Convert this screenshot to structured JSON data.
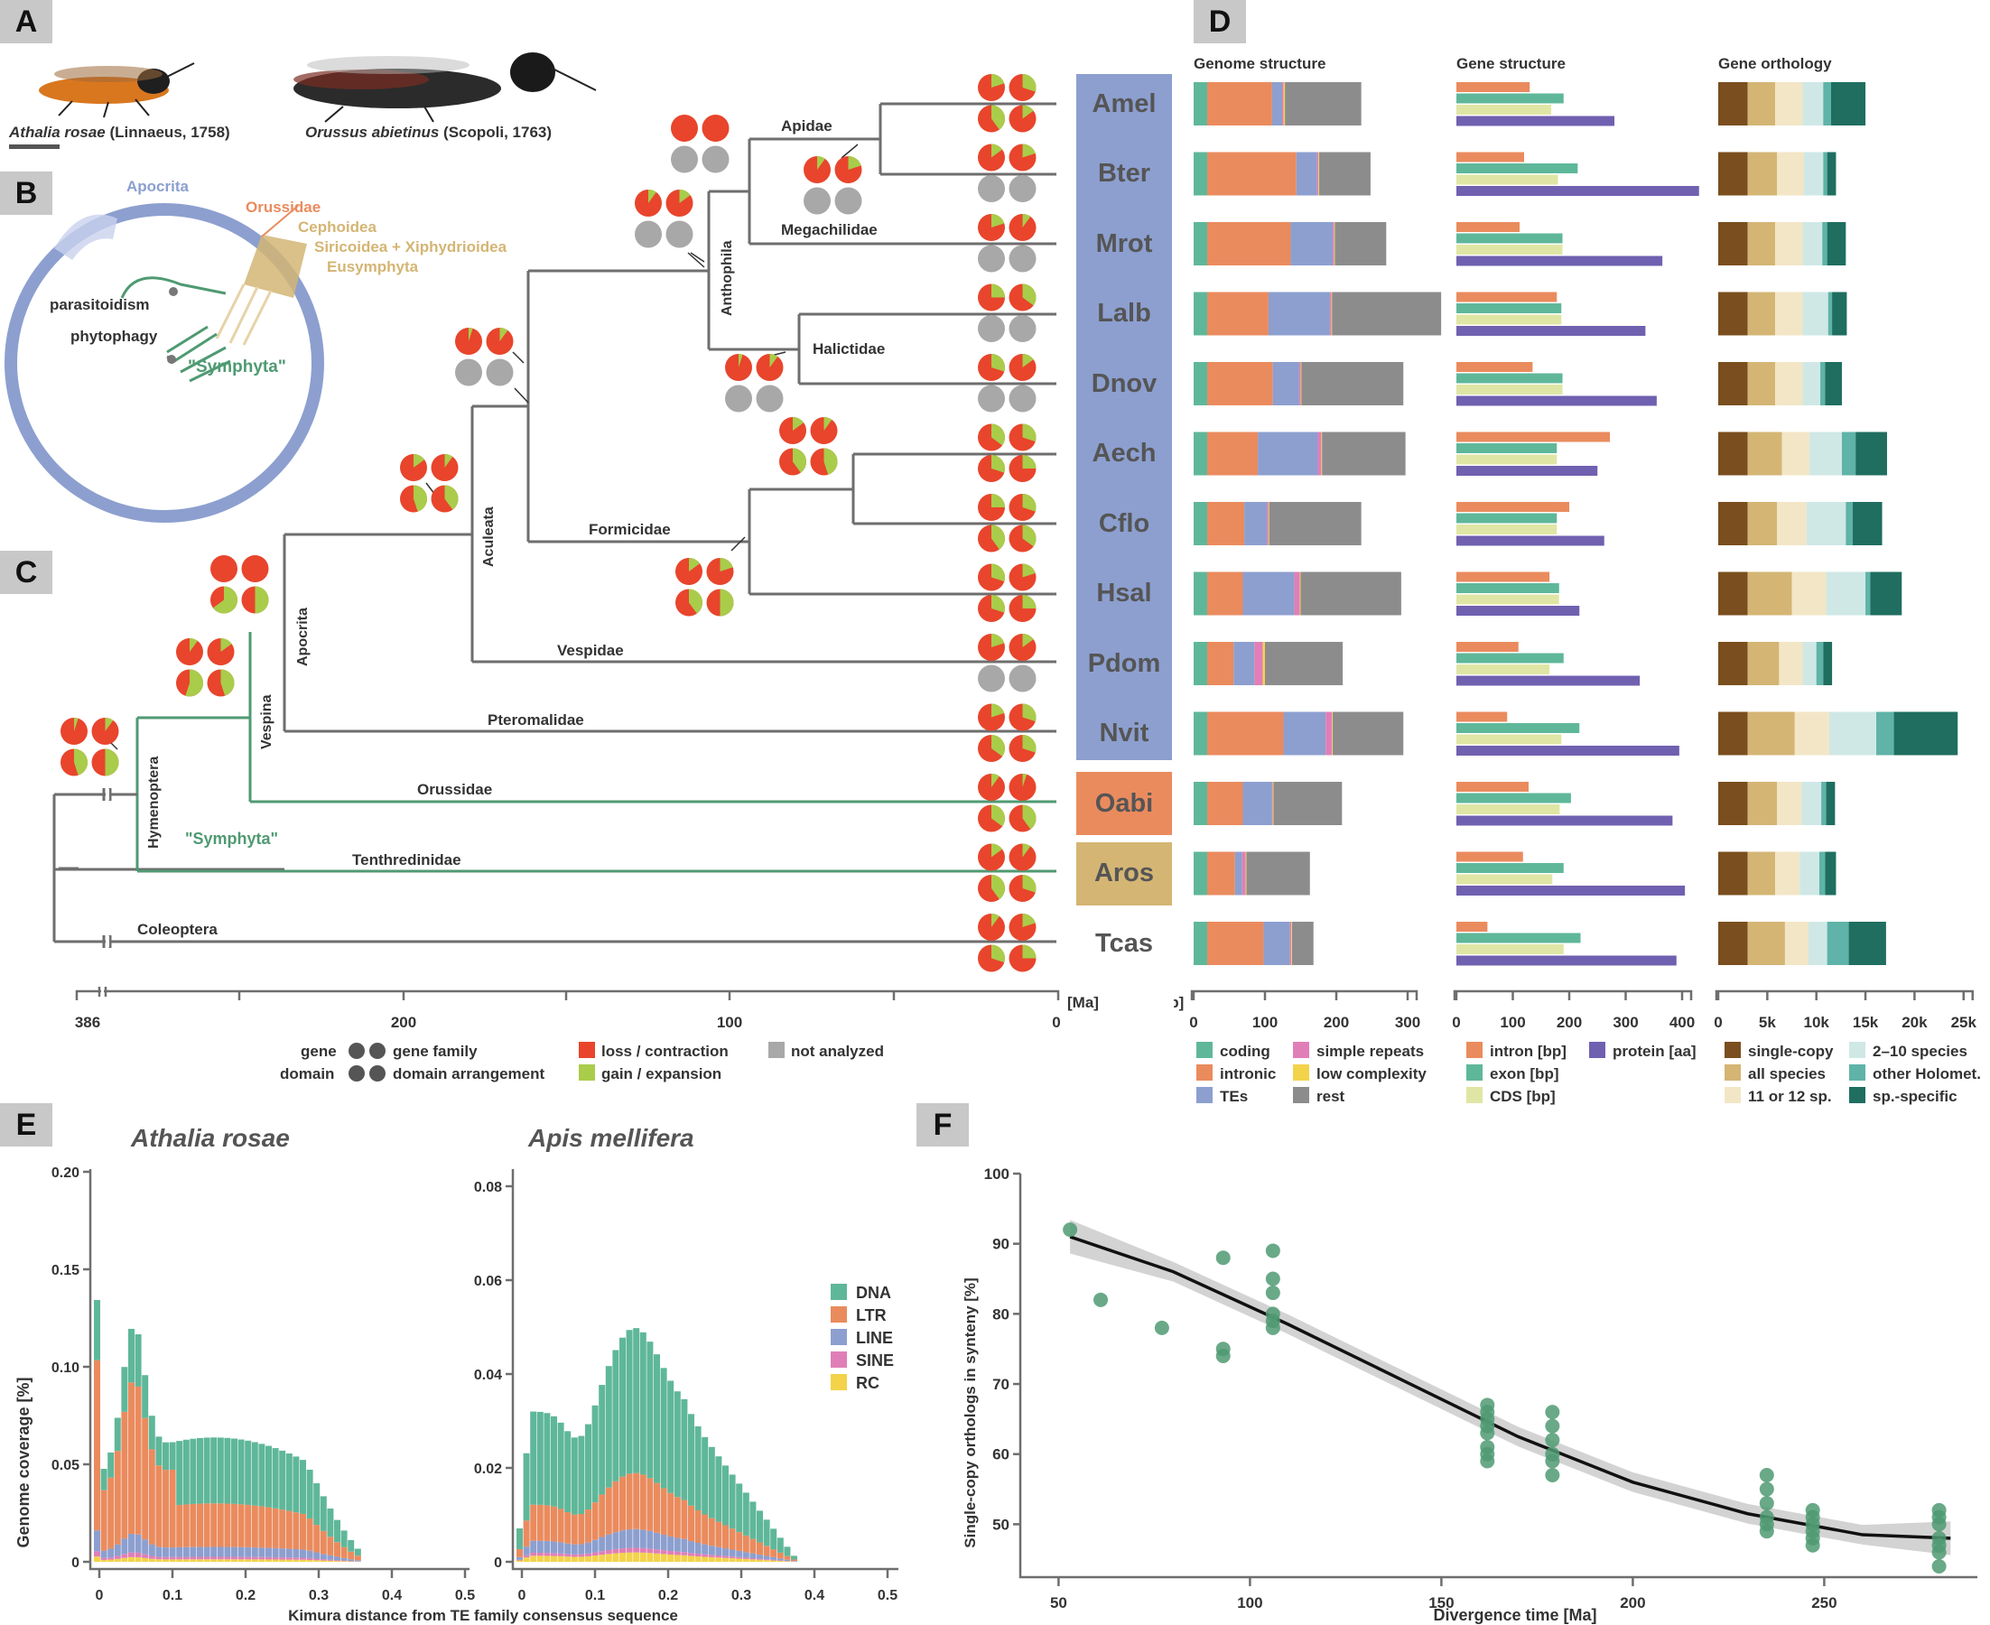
{
  "panel_labels": {
    "A": "A",
    "B": "B",
    "C": "C",
    "D": "D",
    "E": "E",
    "F": "F"
  },
  "panel_a": {
    "species": [
      {
        "name": "Athalia rosae",
        "author": " (Linnaeus, 1758)",
        "body_color": "#d9771f"
      },
      {
        "name": "Orussus abietinus",
        "author": " (Scopoli, 1763)",
        "body_color": "#2b2b2b"
      }
    ]
  },
  "panel_b": {
    "apocrita": "Apocrita",
    "orussidae": "Orussidae",
    "cephoidea": "Cephoidea",
    "siricoidea": "Siricoidea + Xiphydrioidea",
    "eusymphyta": "Eusymphyta",
    "parasitoidism": "parasitoidism",
    "phytophagy": "phytophagy",
    "symphyta": "\"Symphyta\""
  },
  "colors": {
    "apocrita": "#8c9fcf",
    "symphyta": "#4f9a72",
    "orange": "#ea8b5e",
    "tan": "#d4b574",
    "loss": "#e8452c",
    "gain": "#a9cc4a",
    "na": "#a8a8a8",
    "gray": "#6e6e6e"
  },
  "species": [
    {
      "code": "Amel",
      "group": "apo"
    },
    {
      "code": "Bter",
      "group": "apo"
    },
    {
      "code": "Mrot",
      "group": "apo"
    },
    {
      "code": "Lalb",
      "group": "apo"
    },
    {
      "code": "Dnov",
      "group": "apo"
    },
    {
      "code": "Aech",
      "group": "apo"
    },
    {
      "code": "Cflo",
      "group": "apo"
    },
    {
      "code": "Hsal",
      "group": "apo"
    },
    {
      "code": "Pdom",
      "group": "apo"
    },
    {
      "code": "Nvit",
      "group": "apo"
    },
    {
      "code": "Oabi",
      "group": "oru"
    },
    {
      "code": "Aros",
      "group": "ten"
    },
    {
      "code": "Tcas",
      "group": "out"
    }
  ],
  "tree": {
    "clades": {
      "apidae": "Apidae",
      "megachilidae": "Megachilidae",
      "halictidae": "Halictidae",
      "formicidae": "Formicidae",
      "vespidae": "Vespidae",
      "pteromalidae": "Pteromalidae",
      "orussidae": "Orussidae",
      "tenthredinidae": "Tenthredinidae",
      "coleoptera": "Coleoptera",
      "symphyta": "\"Symphyta\""
    },
    "nodes": {
      "anthophila": "Anthophila",
      "aculeata": "Aculeata",
      "apocrita": "Apocrita",
      "vespina": "Vespina",
      "hymenoptera": "Hymenoptera"
    },
    "axis": {
      "ticks": [
        "386",
        "200",
        "100",
        "0"
      ],
      "unit": "[Ma]"
    },
    "legend": {
      "gene": "gene",
      "gene_family": "gene family",
      "domain": "domain",
      "domain_arrangement": "domain arrangement",
      "loss": "loss / contraction",
      "gain": "gain / expansion",
      "na": "not analyzed"
    }
  },
  "panel_d": {
    "titles": {
      "genome": "Genome structure",
      "gene": "Gene structure",
      "orthology": "Gene orthology"
    },
    "units": {
      "genome": "[Mbp]"
    },
    "genome_ticks": [
      "0",
      "100",
      "200",
      "300"
    ],
    "gene_ticks": [
      "0",
      "100",
      "200",
      "300",
      "400"
    ],
    "orth_ticks": [
      "0",
      "5k",
      "10k",
      "15k",
      "20k",
      "25k"
    ],
    "genome_legend": [
      "coding",
      "intronic",
      "TEs",
      "simple repeats",
      "low complexity",
      "rest"
    ],
    "genome_colors": [
      "#5fb79a",
      "#ea8b5e",
      "#8c9fcf",
      "#e07fb7",
      "#f3d34a",
      "#8c8c8c"
    ],
    "gene_legend": [
      "intron [bp]",
      "exon [bp]",
      "CDS [bp]",
      "protein [aa]"
    ],
    "gene_colors": [
      "#ea8b5e",
      "#5fb79a",
      "#dfe6a5",
      "#7060b0"
    ],
    "orth_legend": [
      "single-copy",
      "all species",
      "11 or 12 sp.",
      "2–10 species",
      "other Holomet.",
      "sp.-specific"
    ],
    "orth_colors": [
      "#7a4e1e",
      "#d4b574",
      "#f3e6c6",
      "#cfe8e6",
      "#5fb3a8",
      "#1f6e60"
    ],
    "genome_values": [
      [
        19,
        91,
        14,
        2,
        2,
        107
      ],
      [
        19,
        125,
        29,
        2,
        1,
        72
      ],
      [
        19,
        117,
        59,
        2,
        1,
        72
      ],
      [
        19,
        86,
        86,
        2,
        1,
        153
      ],
      [
        19,
        92,
        37,
        2,
        1,
        143
      ],
      [
        19,
        71,
        84,
        5,
        1,
        117
      ],
      [
        19,
        52,
        32,
        2,
        1,
        129
      ],
      [
        19,
        50,
        72,
        8,
        1,
        141
      ],
      [
        19,
        37,
        29,
        12,
        3,
        109
      ],
      [
        19,
        107,
        59,
        9,
        1,
        99
      ],
      [
        19,
        50,
        41,
        1,
        1,
        96
      ],
      [
        19,
        39,
        10,
        5,
        1,
        89
      ],
      [
        19,
        79,
        37,
        2,
        1,
        30
      ]
    ],
    "gene_values": [
      [
        130,
        190,
        168,
        280
      ],
      [
        120,
        215,
        180,
        430
      ],
      [
        112,
        188,
        188,
        365
      ],
      [
        178,
        186,
        186,
        335
      ],
      [
        135,
        188,
        188,
        355
      ],
      [
        272,
        178,
        178,
        250
      ],
      [
        200,
        178,
        178,
        262
      ],
      [
        165,
        182,
        182,
        218
      ],
      [
        110,
        190,
        165,
        325
      ],
      [
        90,
        218,
        186,
        395
      ],
      [
        128,
        203,
        183,
        383
      ],
      [
        118,
        190,
        170,
        405
      ],
      [
        55,
        220,
        190,
        390
      ]
    ],
    "orth_values": [
      [
        3000,
        2800,
        2800,
        2100,
        800,
        3500
      ],
      [
        3000,
        3000,
        2700,
        2000,
        400,
        900
      ],
      [
        3000,
        2800,
        2800,
        2000,
        500,
        1900
      ],
      [
        3000,
        2800,
        2800,
        2600,
        400,
        1500
      ],
      [
        3000,
        2800,
        2800,
        1800,
        500,
        1700
      ],
      [
        3000,
        3500,
        2800,
        3300,
        1400,
        3200
      ],
      [
        3000,
        3000,
        3000,
        4000,
        700,
        3000
      ],
      [
        3000,
        4500,
        3500,
        4000,
        500,
        3200
      ],
      [
        3000,
        3200,
        2400,
        1400,
        700,
        900
      ],
      [
        3000,
        4800,
        3500,
        4800,
        1800,
        6500
      ],
      [
        3000,
        3000,
        2500,
        2000,
        500,
        900
      ],
      [
        3000,
        2800,
        2500,
        2000,
        600,
        1100
      ],
      [
        3000,
        3800,
        2400,
        1900,
        2200,
        3800
      ]
    ]
  },
  "panel_e": {
    "titles": [
      "Athalia rosae",
      "Apis mellifera"
    ],
    "ylabel": "Genome coverage [%]",
    "xlabel": "Kimura distance from TE family consensus sequence",
    "yticks_left": [
      "0",
      "0.05",
      "0.10",
      "0.15",
      "0.20"
    ],
    "yticks_right": [
      "0",
      "0.02",
      "0.04",
      "0.06",
      "0.08"
    ],
    "xticks": [
      "0",
      "0.1",
      "0.2",
      "0.3",
      "0.4",
      "0.5"
    ],
    "legend": [
      "DNA",
      "LTR",
      "LINE",
      "SINE",
      "RC"
    ],
    "legend_colors": [
      "#5fb79a",
      "#ea8b5e",
      "#8c9fcf",
      "#e07fb7",
      "#f3d34a"
    ]
  },
  "chart_data": {
    "type": "scatter",
    "xlabel": "Divergence time [Ma]",
    "ylabel": "Single-copy orthologs in synteny [%]",
    "xlim": [
      40,
      290
    ],
    "ylim": [
      44,
      100
    ],
    "xticks": [
      "50",
      "100",
      "150",
      "200",
      "250"
    ],
    "yticks": [
      "50",
      "60",
      "70",
      "80",
      "90",
      "100"
    ],
    "points": [
      [
        53,
        92
      ],
      [
        61,
        82
      ],
      [
        77,
        78
      ],
      [
        93,
        88
      ],
      [
        93,
        75
      ],
      [
        93,
        74
      ],
      [
        106,
        89
      ],
      [
        106,
        85
      ],
      [
        106,
        83
      ],
      [
        106,
        80
      ],
      [
        106,
        79
      ],
      [
        106,
        78
      ],
      [
        162,
        67
      ],
      [
        162,
        66
      ],
      [
        162,
        65
      ],
      [
        162,
        64
      ],
      [
        162,
        63
      ],
      [
        162,
        61
      ],
      [
        162,
        60
      ],
      [
        162,
        59
      ],
      [
        179,
        66
      ],
      [
        179,
        64
      ],
      [
        179,
        62
      ],
      [
        179,
        60
      ],
      [
        179,
        59
      ],
      [
        179,
        57
      ],
      [
        235,
        57
      ],
      [
        235,
        55
      ],
      [
        235,
        53
      ],
      [
        235,
        51
      ],
      [
        235,
        50
      ],
      [
        235,
        49
      ],
      [
        247,
        52
      ],
      [
        247,
        51
      ],
      [
        247,
        50
      ],
      [
        247,
        49
      ],
      [
        247,
        48
      ],
      [
        247,
        47
      ],
      [
        280,
        52
      ],
      [
        280,
        51
      ],
      [
        280,
        50
      ],
      [
        280,
        48
      ],
      [
        280,
        47
      ],
      [
        280,
        46
      ],
      [
        280,
        44
      ]
    ],
    "fit": [
      [
        53,
        91
      ],
      [
        80,
        86
      ],
      [
        110,
        78.5
      ],
      [
        140,
        70.5
      ],
      [
        170,
        62.5
      ],
      [
        200,
        56
      ],
      [
        230,
        51.5
      ],
      [
        260,
        48.5
      ],
      [
        283,
        48
      ]
    ],
    "point_color": "#4f9a72"
  }
}
